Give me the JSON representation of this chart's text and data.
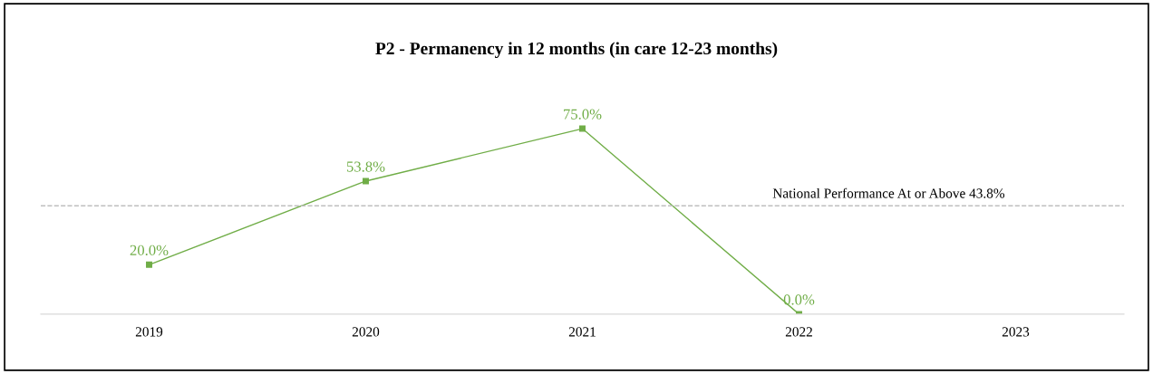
{
  "chart_data": {
    "type": "line",
    "title": "P2 - Permanency in 12 months (in care 12-23 months)",
    "categories": [
      "2019",
      "2020",
      "2021",
      "2022",
      "2023"
    ],
    "series": [
      {
        "color": "#70ad47",
        "values": [
          20.0,
          53.8,
          75.0,
          0.0,
          null
        ],
        "value_labels": [
          "20.0%",
          "53.8%",
          "75.0%",
          "0.0%",
          null
        ]
      }
    ],
    "ref_lines": [
      {
        "axis": "y",
        "value": 43.8,
        "label": "National Performance At or Above 43.8%",
        "color": "#bfbfbf",
        "line_style": "dashed"
      }
    ],
    "marker": "square",
    "line_style": "solid",
    "grid": false,
    "legend": false
  }
}
